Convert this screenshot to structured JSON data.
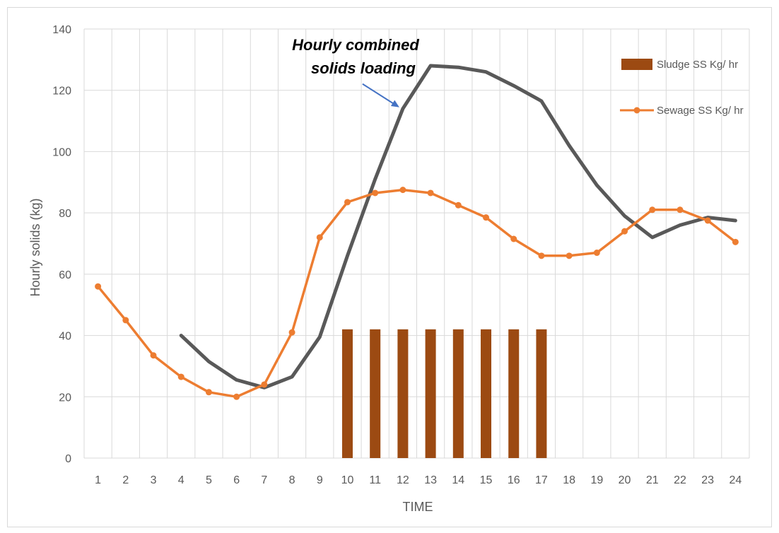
{
  "chart_data": {
    "type": "bar",
    "title": "",
    "xlabel": "TIME",
    "ylabel": "Hourly solids (kg)",
    "ylim": [
      0,
      140
    ],
    "yticks": [
      0,
      20,
      40,
      60,
      80,
      100,
      120,
      140
    ],
    "grid": true,
    "legend_position": "top-right",
    "categories": [
      "1",
      "2",
      "3",
      "4",
      "5",
      "6",
      "7",
      "8",
      "9",
      "10",
      "11",
      "12",
      "13",
      "14",
      "15",
      "16",
      "17",
      "18",
      "19",
      "20",
      "21",
      "22",
      "23",
      "24"
    ],
    "series": [
      {
        "name": "Sludge SS Kg/ hr",
        "kind": "bar",
        "color": "#9c4a12",
        "values": [
          null,
          null,
          null,
          null,
          null,
          null,
          null,
          null,
          null,
          42,
          42,
          42,
          42,
          42,
          42,
          42,
          42,
          null,
          null,
          null,
          null,
          null,
          null,
          null
        ]
      },
      {
        "name": "Sewage SS Kg/ hr",
        "kind": "line-markers",
        "color": "#ed7d31",
        "values": [
          56,
          45,
          33.5,
          26.5,
          21.5,
          20,
          24,
          41,
          72,
          83.5,
          86.5,
          87.5,
          86.5,
          82.5,
          78.5,
          71.5,
          66,
          66,
          67,
          74,
          81,
          81,
          77.5,
          70.5
        ]
      },
      {
        "name": "",
        "kind": "line",
        "color": "#595959",
        "values": [
          null,
          null,
          null,
          40,
          31.5,
          25.5,
          23,
          26.5,
          39.5,
          66,
          91,
          114,
          128,
          127.5,
          126,
          121.5,
          116.5,
          102,
          89,
          79,
          72,
          76,
          78.5,
          77.5
        ]
      }
    ],
    "annotation": {
      "lines": [
        "Hourly combined",
        "solids loading"
      ],
      "arrow_color": "#4472c4",
      "points_to": {
        "x": "12",
        "y": 114
      }
    }
  }
}
